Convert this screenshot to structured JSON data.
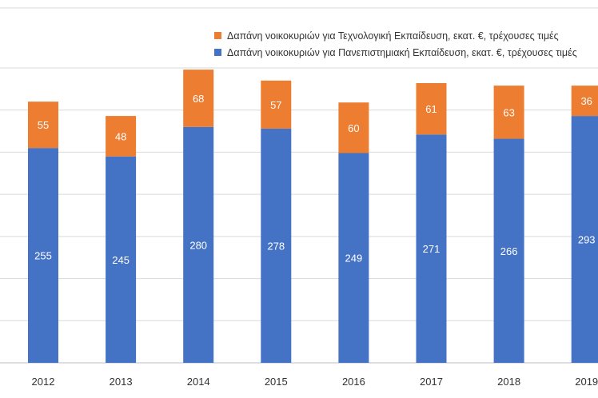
{
  "chart_data": {
    "type": "bar",
    "stacked": true,
    "categories": [
      "2012",
      "2013",
      "2014",
      "2015",
      "2016",
      "2017",
      "2018",
      "2019"
    ],
    "series": [
      {
        "name": "Δαπάνη νοικοκυριών για Πανεπιστημιακή Εκπαίδευση, εκατ. €, τρέχουσες τιμές",
        "color": "#4472c4",
        "values": [
          255,
          245,
          280,
          278,
          249,
          271,
          266,
          293
        ]
      },
      {
        "name": "Δαπάνη νοικοκυριών για Τεχνολογική Εκπαίδευση, εκατ. €, τρέχουσες τιμές",
        "color": "#ed7d31",
        "values": [
          55,
          48,
          68,
          57,
          60,
          61,
          63,
          36
        ]
      }
    ],
    "ylim": [
      0,
      350
    ],
    "grid": true,
    "legend_position": "top-right"
  }
}
